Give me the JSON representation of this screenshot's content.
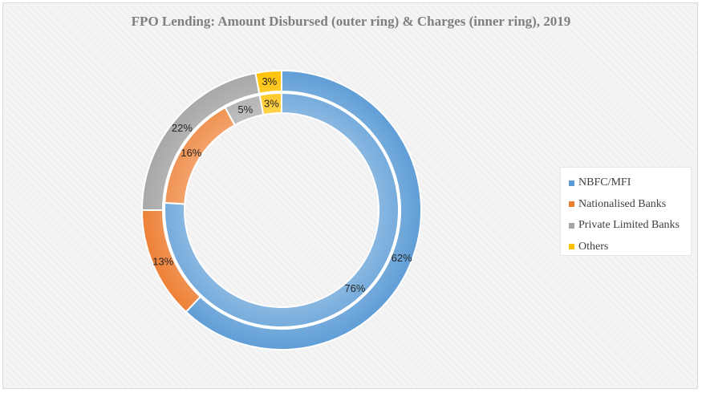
{
  "chart_data": {
    "type": "pie",
    "title": "FPO Lending: Amount Disbursed (outer ring) & Charges (inner ring), 2019",
    "legend_position": "right",
    "categories": [
      "NBFC/MFI",
      "Nationalised Banks",
      "Private Limited Banks",
      "Others"
    ],
    "colors": [
      "#5b9bd5",
      "#ed7d31",
      "#a5a5a5",
      "#ffc000"
    ],
    "series": [
      {
        "ring": "outer",
        "values": [
          62,
          13,
          22,
          3
        ],
        "labels": [
          "62%",
          "13%",
          "22%",
          "3%"
        ]
      },
      {
        "ring": "inner",
        "values": [
          76,
          16,
          5,
          3
        ],
        "labels": [
          "76%",
          "16%",
          "5%",
          "3%"
        ]
      }
    ]
  }
}
